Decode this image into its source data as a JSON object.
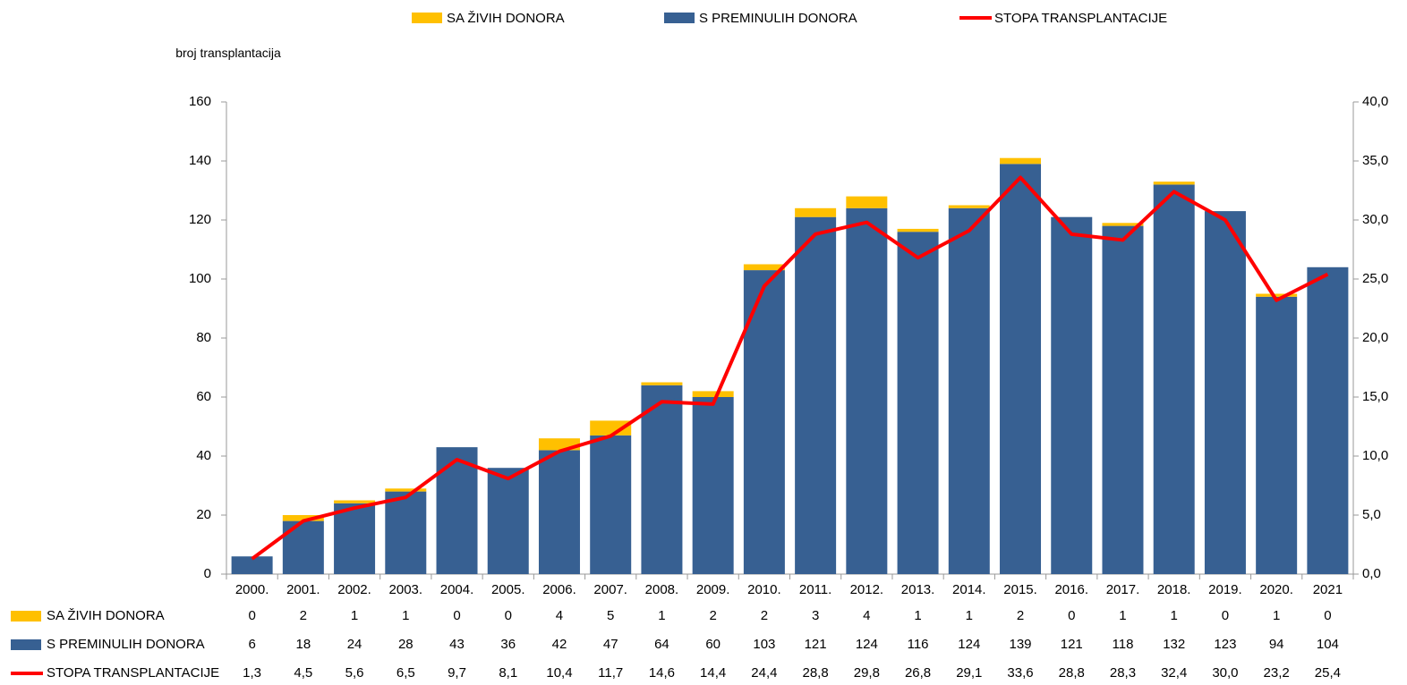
{
  "chart_data": {
    "type": "bar",
    "y_axis_label": "broj transplantacija",
    "categories": [
      "2000.",
      "2001.",
      "2002.",
      "2003.",
      "2004.",
      "2005.",
      "2006.",
      "2007.",
      "2008.",
      "2009.",
      "2010.",
      "2011.",
      "2012.",
      "2013.",
      "2014.",
      "2015.",
      "2016.",
      "2017.",
      "2018.",
      "2019.",
      "2020.",
      "2021"
    ],
    "stacked": true,
    "series": [
      {
        "name": "SA ŽIVIH DONORA",
        "color": "#ffc000",
        "type": "bar",
        "values": [
          0,
          2,
          1,
          1,
          0,
          0,
          4,
          5,
          1,
          2,
          2,
          3,
          4,
          1,
          1,
          2,
          0,
          1,
          1,
          0,
          1,
          0
        ]
      },
      {
        "name": "S PREMINULIH  DONORA",
        "color": "#376092",
        "type": "bar",
        "values": [
          6,
          18,
          24,
          28,
          43,
          36,
          42,
          47,
          64,
          60,
          103,
          121,
          124,
          116,
          124,
          139,
          121,
          118,
          132,
          123,
          94,
          104
        ]
      },
      {
        "name": "STOPA TRANSPLANTACIJE",
        "color": "#ff0000",
        "type": "line",
        "axis": "y2",
        "values": [
          1.3,
          4.5,
          5.6,
          6.5,
          9.7,
          8.1,
          10.4,
          11.7,
          14.6,
          14.4,
          24.4,
          28.8,
          29.8,
          26.8,
          29.1,
          33.6,
          28.8,
          28.3,
          32.4,
          30.0,
          23.2,
          25.4
        ],
        "value_labels": [
          "1,3",
          "4,5",
          "5,6",
          "6,5",
          "9,7",
          "8,1",
          "10,4",
          "11,7",
          "14,6",
          "14,4",
          "24,4",
          "28,8",
          "29,8",
          "26,8",
          "29,1",
          "33,6",
          "28,8",
          "28,3",
          "32,4",
          "30,0",
          "23,2",
          "25,4"
        ]
      }
    ],
    "ylim": [
      0,
      160
    ],
    "yticks": [
      0,
      20,
      40,
      60,
      80,
      100,
      120,
      140,
      160
    ],
    "y2lim": [
      0,
      40
    ],
    "y2ticks": [
      {
        "value": 0,
        "label": "0,0"
      },
      {
        "value": 5,
        "label": "5,0"
      },
      {
        "value": 10,
        "label": "10,0"
      },
      {
        "value": 15,
        "label": "15,0"
      },
      {
        "value": 20,
        "label": "20,0"
      },
      {
        "value": 25,
        "label": "25,0"
      },
      {
        "value": 30,
        "label": "30,0"
      },
      {
        "value": 35,
        "label": "35,0"
      },
      {
        "value": 40,
        "label": "40,0"
      }
    ],
    "grid": false,
    "legend": "top",
    "data_table": true
  }
}
